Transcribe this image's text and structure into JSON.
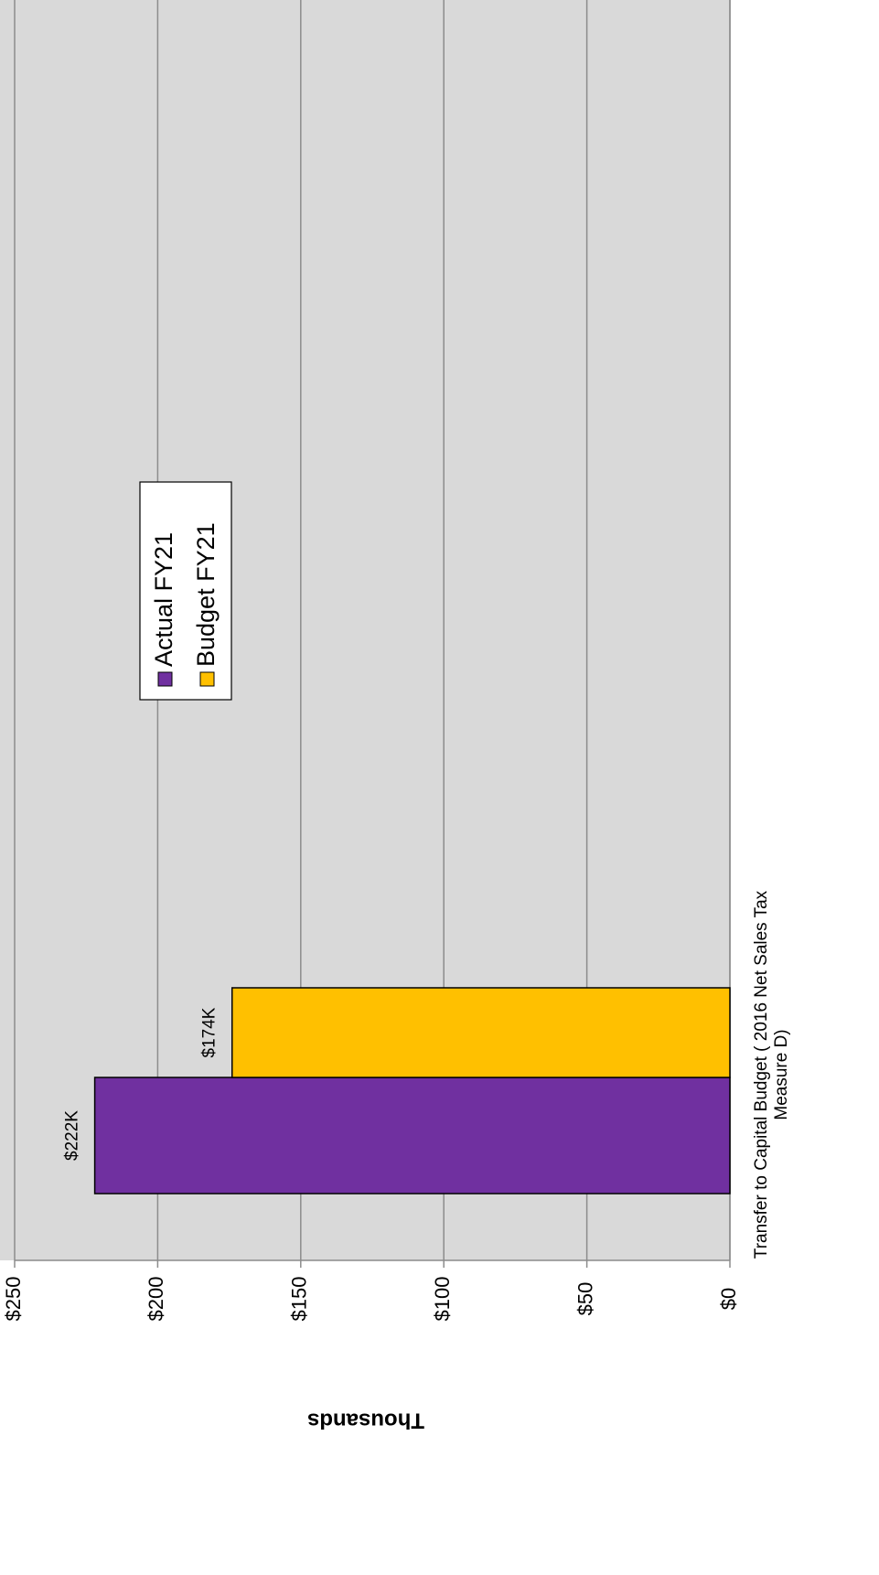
{
  "chart_data": {
    "type": "bar",
    "categories": [
      "Transfer to Capital Budget ( 2016 Net Sales Tax Measure D)"
    ],
    "series": [
      {
        "name": "Actual FY21",
        "color": "#7030a0",
        "values": [
          222
        ],
        "value_labels": [
          "$222K"
        ]
      },
      {
        "name": "Budget FY21",
        "color": "#ffc000",
        "values": [
          174
        ],
        "value_labels": [
          "$174K"
        ]
      }
    ],
    "ylabel": "Thousands",
    "ylim": [
      0,
      250
    ],
    "yticks": [
      {
        "value": 0,
        "label": "$0"
      },
      {
        "value": 50,
        "label": "$50"
      },
      {
        "value": 100,
        "label": "$100"
      },
      {
        "value": 150,
        "label": "$150"
      },
      {
        "value": 200,
        "label": "$200"
      },
      {
        "value": 250,
        "label": "$250"
      }
    ],
    "grid": true,
    "legend": "center"
  }
}
